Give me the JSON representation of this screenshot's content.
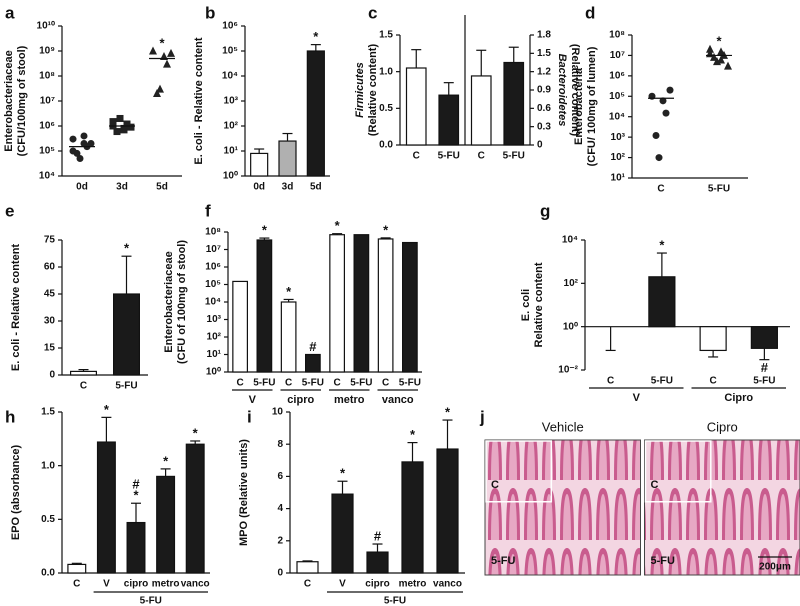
{
  "chart_data": [
    {
      "type": "dot",
      "label": "a",
      "ylabel": [
        "Enterobacteriaceae",
        "(CFU/100mg of stool)"
      ],
      "categories": [
        "0d",
        "3d",
        "5d"
      ],
      "points": [
        [
          300000,
          200000,
          150000,
          80000,
          50000,
          200000,
          100000,
          400000
        ],
        [
          1000000,
          800000,
          1200000,
          600000,
          2000000,
          900000,
          1500000,
          700000
        ],
        [
          1000000000,
          600000000,
          300000000,
          20000000,
          30000000,
          800000000
        ]
      ],
      "medians": [
        150000,
        1000000,
        500000000
      ],
      "markers": [
        "circle",
        "square",
        "triangle"
      ],
      "stars": [
        null,
        null,
        [
          "*"
        ]
      ],
      "log": true,
      "ylim": [
        10000,
        10000000000
      ],
      "yticks": [
        {
          "value": 10000,
          "label": "10⁴"
        },
        {
          "value": 100000,
          "label": "10⁵"
        },
        {
          "value": 1000000,
          "label": "10⁶"
        },
        {
          "value": 10000000,
          "label": "10⁷"
        },
        {
          "value": 100000000,
          "label": "10⁸"
        },
        {
          "value": 1000000000,
          "label": "10⁹"
        },
        {
          "value": 10000000000,
          "label": "10¹⁰"
        }
      ]
    },
    {
      "type": "bar",
      "label": "b",
      "ylabel": "E. coli - Relative content",
      "categories": [
        "0d",
        "3d",
        "5d"
      ],
      "values": [
        8,
        25,
        100000
      ],
      "errors": [
        4,
        25,
        80000
      ],
      "colors": [
        "#ffffff",
        "#b0b0b0",
        "#1a1a1a"
      ],
      "stars": [
        null,
        null,
        [
          "*"
        ]
      ],
      "log": true,
      "ylim": [
        1,
        1000000
      ],
      "yticks": [
        {
          "value": 1,
          "label": "10⁰"
        },
        {
          "value": 10,
          "label": "10¹"
        },
        {
          "value": 100,
          "label": "10²"
        },
        {
          "value": 1000,
          "label": "10³"
        },
        {
          "value": 10000,
          "label": "10⁴"
        },
        {
          "value": 100000,
          "label": "10⁵"
        },
        {
          "value": 1000000,
          "label": "10⁶"
        }
      ]
    },
    {
      "type": "bar",
      "label": "c",
      "ylabel": "(Relative content)",
      "y2label": "(Relative content)",
      "categories": [
        "C",
        "5-FU"
      ],
      "series": [
        {
          "name": "Firmicutes",
          "values": [
            1.05,
            0.68
          ],
          "errors": [
            0.25,
            0.17
          ],
          "colors": [
            "#ffffff",
            "#1a1a1a"
          ]
        },
        {
          "name": "Bacteroidetes",
          "axis": "y2",
          "values": [
            1.13,
            1.35
          ],
          "errors": [
            0.42,
            0.25
          ],
          "colors": [
            "#ffffff",
            "#1a1a1a"
          ]
        }
      ],
      "ylim": [
        0,
        1.5
      ],
      "yticks": [
        {
          "value": 0,
          "label": "0.0"
        },
        0.5,
        {
          "value": 1,
          "label": "1.0"
        },
        1.5
      ],
      "y2lim": [
        0,
        1.8
      ],
      "y2ticks": [
        0,
        0.3,
        0.6,
        0.9,
        1.2,
        1.5,
        1.8
      ]
    },
    {
      "type": "dot",
      "label": "d",
      "ylabel": [
        "Enterobacteria",
        "(CFU/ 100mg of lumen)"
      ],
      "categories": [
        "C",
        "5-FU"
      ],
      "points": [
        [
          100000,
          60000,
          15000,
          1200,
          100,
          200000
        ],
        [
          20000000,
          15000000,
          10000000,
          8000000,
          5000000,
          3000000,
          12000000,
          6000000
        ]
      ],
      "medians": [
        80000,
        10000000
      ],
      "markers": [
        "circle",
        "triangle"
      ],
      "stars": [
        null,
        [
          "*"
        ]
      ],
      "log": true,
      "ylim": [
        10,
        100000000
      ],
      "yticks": [
        {
          "value": 10,
          "label": "10¹"
        },
        {
          "value": 100,
          "label": "10²"
        },
        {
          "value": 1000,
          "label": "10³"
        },
        {
          "value": 10000,
          "label": "10⁴"
        },
        {
          "value": 100000,
          "label": "10⁵"
        },
        {
          "value": 1000000,
          "label": "10⁶"
        },
        {
          "value": 10000000,
          "label": "10⁷"
        },
        {
          "value": 100000000,
          "label": "10⁸"
        }
      ]
    },
    {
      "type": "bar",
      "label": "e",
      "ylabel": "E. coli - Relative content",
      "categories": [
        "C",
        "5-FU"
      ],
      "values": [
        2,
        45
      ],
      "errors": [
        1,
        21
      ],
      "colors": [
        "#ffffff",
        "#1a1a1a"
      ],
      "stars": [
        null,
        [
          "*"
        ]
      ],
      "ylim": [
        0,
        75
      ],
      "yticks": [
        0,
        15,
        30,
        45,
        60,
        75
      ]
    },
    {
      "type": "bar",
      "label": "f",
      "ylabel": [
        "Enterobacteriaceae",
        "(CFU of 100mg of stool)"
      ],
      "categories": [
        "C",
        "5-FU",
        "C",
        "5-FU",
        "C",
        "5-FU",
        "C",
        "5-FU"
      ],
      "groups": [
        "V",
        "cipro",
        "metro",
        "vanco"
      ],
      "values": [
        150000,
        35000000,
        10000,
        10,
        70000000,
        70000000,
        40000000,
        25000000
      ],
      "errors": [
        null,
        10000000,
        4000,
        null,
        10000000,
        null,
        6000000,
        null
      ],
      "colors": [
        "#ffffff",
        "#1a1a1a",
        "#ffffff",
        "#1a1a1a",
        "#ffffff",
        "#1a1a1a",
        "#ffffff",
        "#1a1a1a"
      ],
      "stars": [
        null,
        [
          "*"
        ],
        [
          "*"
        ],
        [
          "#"
        ],
        [
          "*"
        ],
        null,
        [
          "*"
        ],
        null
      ],
      "log": true,
      "ylim": [
        1,
        100000000
      ],
      "yticks": [
        {
          "value": 1,
          "label": "10⁰"
        },
        {
          "value": 10,
          "label": "10¹"
        },
        {
          "value": 100,
          "label": "10²"
        },
        {
          "value": 1000,
          "label": "10³"
        },
        {
          "value": 10000,
          "label": "10⁴"
        },
        {
          "value": 100000,
          "label": "10⁵"
        },
        {
          "value": 1000000,
          "label": "10⁶"
        },
        {
          "value": 10000000,
          "label": "10⁷"
        },
        {
          "value": 100000000,
          "label": "10⁸"
        }
      ]
    },
    {
      "type": "bar",
      "label": "g",
      "ylabel": [
        "E. coli",
        "Relative content"
      ],
      "categories": [
        "C",
        "5-FU",
        "C",
        "5-FU"
      ],
      "groups": [
        "V",
        "Cipro"
      ],
      "values": [
        1,
        200,
        0.08,
        0.1
      ],
      "errors": [
        0.92,
        2300,
        0.04,
        0.07
      ],
      "colors": [
        "#ffffff",
        "#1a1a1a",
        "#ffffff",
        "#1a1a1a"
      ],
      "stars": [
        null,
        [
          "*"
        ],
        null,
        [
          "#"
        ]
      ],
      "log": true,
      "baseline": 1,
      "ylim": [
        0.01,
        10000
      ],
      "yticks": [
        {
          "value": 0.01,
          "label": "10⁻²"
        },
        {
          "value": 1,
          "label": "10⁰"
        },
        {
          "value": 100,
          "label": "10²"
        },
        {
          "value": 10000,
          "label": "10⁴"
        }
      ]
    },
    {
      "type": "bar",
      "label": "h",
      "ylabel": "EPO (absorbance)",
      "categories": [
        "C",
        "V",
        "cipro",
        "metro",
        "vanco"
      ],
      "group_label": "5-FU",
      "values": [
        0.08,
        1.22,
        0.47,
        0.9,
        1.2
      ],
      "errors": [
        0.01,
        0.23,
        0.18,
        0.07,
        0.03
      ],
      "colors": [
        "#ffffff",
        "#1a1a1a",
        "#1a1a1a",
        "#1a1a1a",
        "#1a1a1a"
      ],
      "stars": [
        null,
        [
          "*"
        ],
        [
          "#",
          "*"
        ],
        [
          "*"
        ],
        [
          "*"
        ]
      ],
      "ylim": [
        0,
        1.5
      ],
      "yticks": [
        {
          "value": 0,
          "label": "0.0"
        },
        0.5,
        {
          "value": 1,
          "label": "1.0"
        },
        1.5
      ]
    },
    {
      "type": "bar",
      "label": "i",
      "ylabel": "MPO (Relative units)",
      "categories": [
        "C",
        "V",
        "cipro",
        "metro",
        "vanco"
      ],
      "group_label": "5-FU",
      "values": [
        0.7,
        4.9,
        1.3,
        6.9,
        7.7
      ],
      "errors": [
        0.05,
        0.8,
        0.5,
        1.2,
        1.8
      ],
      "colors": [
        "#ffffff",
        "#1a1a1a",
        "#1a1a1a",
        "#1a1a1a",
        "#1a1a1a"
      ],
      "stars": [
        null,
        [
          "*"
        ],
        [
          "#"
        ],
        [
          "*"
        ],
        [
          "*"
        ]
      ],
      "ylim": [
        0,
        10
      ],
      "yticks": [
        0,
        2,
        4,
        6,
        8,
        10
      ]
    },
    {
      "type": "image",
      "label": "j",
      "titles": [
        "Vehicle",
        "Cipro"
      ],
      "insets": [
        "C",
        "C"
      ],
      "lower": [
        "5-FU",
        "5-FU"
      ],
      "scale_bar": "200μm"
    }
  ]
}
